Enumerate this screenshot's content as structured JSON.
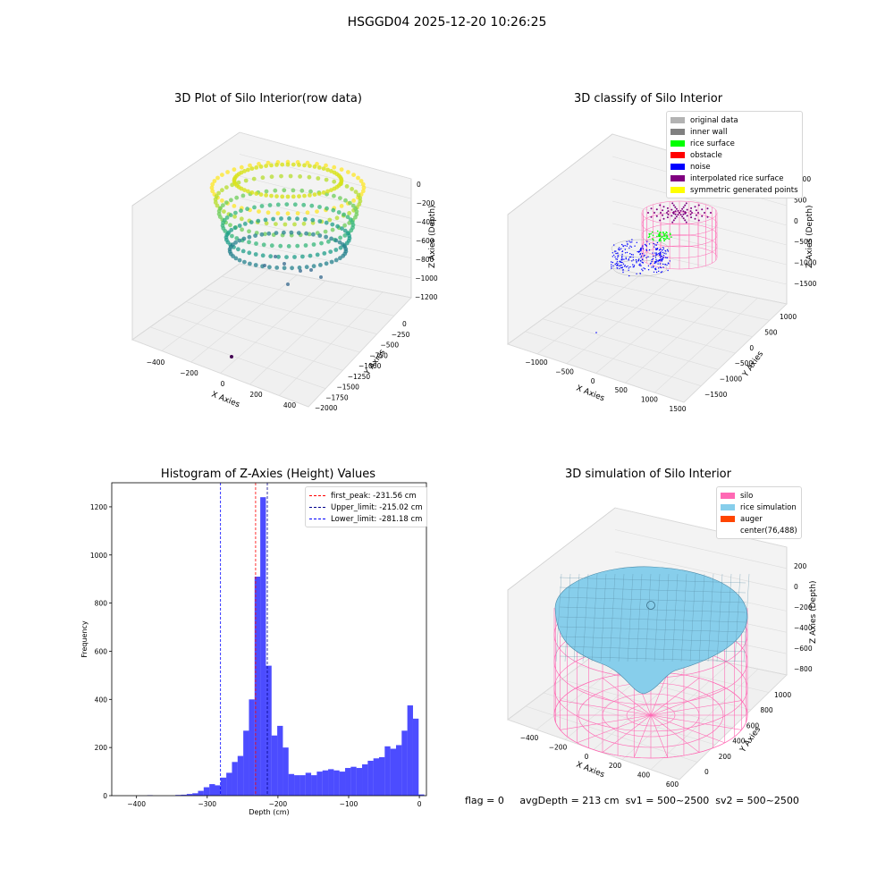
{
  "figure": {
    "suptitle": "HSGGD04 2025-12-20 10:26:25"
  },
  "panels": {
    "raw": {
      "title": "3D Plot of Silo Interior(row data)",
      "x_label": "X Axies",
      "y_label": "Y Axies",
      "z_label": "Z Axies (Depth)",
      "x_ticks": [
        "−400",
        "−200",
        "0",
        "200",
        "400"
      ],
      "y_ticks": [
        "0",
        "−250",
        "−500",
        "−750",
        "−1000",
        "−1250",
        "−1500",
        "−1750",
        "−2000"
      ],
      "z_ticks": [
        "0",
        "−200",
        "−400",
        "−600",
        "−800",
        "−1000",
        "−1200"
      ]
    },
    "classify": {
      "title": "3D classify of Silo Interior",
      "x_label": "X Axies",
      "y_label": "Y Axies",
      "z_label": "Z Axies (Depth)",
      "x_ticks": [
        "−1000",
        "−500",
        "0",
        "500",
        "1000",
        "1500"
      ],
      "y_ticks": [
        "1000",
        "500",
        "0",
        "−500",
        "−1000",
        "−1500"
      ],
      "z_ticks": [
        "1000",
        "500",
        "0",
        "−500",
        "−1000",
        "−1500"
      ],
      "legend": [
        {
          "label": "original data",
          "color": "#b3b3b3"
        },
        {
          "label": "inner wall",
          "color": "#808080"
        },
        {
          "label": "rice surface",
          "color": "#00ff00"
        },
        {
          "label": "obstacle",
          "color": "#ff0000"
        },
        {
          "label": "noise",
          "color": "#0000ff"
        },
        {
          "label": "interpolated rice surface",
          "color": "#800080"
        },
        {
          "label": "symmetric generated points",
          "color": "#ffff00"
        }
      ]
    },
    "simulation": {
      "title": "3D simulation of Silo Interior",
      "x_label": "X Axies",
      "y_label": "Y Axies",
      "z_label": "Z Axies (Depth)",
      "x_ticks": [
        "−400",
        "−200",
        "0",
        "200",
        "400",
        "600"
      ],
      "y_ticks": [
        "0",
        "200",
        "400",
        "600",
        "800",
        "1000"
      ],
      "z_ticks": [
        "200",
        "0",
        "−200",
        "−400",
        "−600",
        "−800"
      ],
      "legend": [
        {
          "label": "silo",
          "color": "#ff69b4"
        },
        {
          "label": "rice simulation",
          "color": "#87ceeb"
        },
        {
          "label": "auger",
          "color": "#ff4500"
        },
        {
          "label": "center(76,488)",
          "color": ""
        }
      ]
    }
  },
  "status": {
    "flag": "flag = 0",
    "avg_depth": "avgDepth = 213 cm",
    "sv1": "sv1 = 500~2500",
    "sv2": "sv2 = 500~2500"
  },
  "chart_data": [
    {
      "type": "scatter",
      "title": "3D Plot of Silo Interior(row data)",
      "xlabel": "X Axies",
      "ylabel": "Y Axies",
      "zlabel": "Z Axies (Depth)",
      "xlim": [
        -450,
        450
      ],
      "ylim": [
        -2000,
        0
      ],
      "zlim": [
        -1300,
        50
      ],
      "colormap": "viridis",
      "grid": true
    },
    {
      "type": "scatter",
      "title": "3D classify of Silo Interior",
      "xlabel": "X Axies",
      "ylabel": "Y Axies",
      "zlabel": "Z Axies (Depth)",
      "xlim": [
        -1200,
        1500
      ],
      "ylim": [
        -1600,
        1000
      ],
      "zlim": [
        -1700,
        1000
      ],
      "series": [
        {
          "name": "original data",
          "color": "#b3b3b3"
        },
        {
          "name": "inner wall",
          "color": "#808080"
        },
        {
          "name": "rice surface",
          "color": "#00ff00"
        },
        {
          "name": "obstacle",
          "color": "#ff0000"
        },
        {
          "name": "noise",
          "color": "#0000ff"
        },
        {
          "name": "interpolated rice surface",
          "color": "#800080"
        },
        {
          "name": "symmetric generated points",
          "color": "#ffff00"
        }
      ],
      "legend_position": "top-right",
      "grid": true
    },
    {
      "type": "histogram",
      "title": "Histogram of Z-Axies (Height) Values",
      "xlabel": "Depth (cm)",
      "ylabel": "Frequency",
      "xlim": [
        -435,
        10
      ],
      "ylim": [
        0,
        1300
      ],
      "x_ticks": [
        -400,
        -300,
        -200,
        -100,
        0
      ],
      "y_ticks": [
        0,
        200,
        400,
        600,
        800,
        1000,
        1200
      ],
      "bin_start": -385,
      "bin_width": 8,
      "values": [
        2,
        0,
        0,
        0,
        0,
        3,
        4,
        7,
        10,
        20,
        35,
        48,
        43,
        75,
        95,
        140,
        165,
        270,
        400,
        910,
        1240,
        540,
        250,
        290,
        200,
        90,
        85,
        85,
        95,
        85,
        100,
        105,
        110,
        105,
        100,
        115,
        120,
        115,
        130,
        145,
        155,
        160,
        205,
        195,
        210,
        270,
        375,
        320,
        5
      ],
      "color": "#0000ff",
      "vlines": [
        {
          "label": "first_peak: -231.56 cm",
          "x": -231.56,
          "color": "#ff0000"
        },
        {
          "label": "Upper_limit: -215.02 cm",
          "x": -215.02,
          "color": "#00008b"
        },
        {
          "label": "Lower_limit: -281.18 cm",
          "x": -281.18,
          "color": "#0000ff"
        }
      ],
      "legend_position": "top-right",
      "grid": false
    },
    {
      "type": "surface",
      "title": "3D simulation of Silo Interior",
      "xlabel": "X Axies",
      "ylabel": "Y Axies",
      "zlabel": "Z Axies (Depth)",
      "xlim": [
        -500,
        650
      ],
      "ylim": [
        -100,
        1100
      ],
      "zlim": [
        -900,
        300
      ],
      "series": [
        {
          "name": "silo",
          "color": "#ff69b4"
        },
        {
          "name": "rice simulation",
          "color": "#87ceeb"
        },
        {
          "name": "auger",
          "color": "#ff4500"
        },
        {
          "name": "center(76,488)"
        }
      ],
      "legend_position": "top-right",
      "grid": true
    }
  ]
}
